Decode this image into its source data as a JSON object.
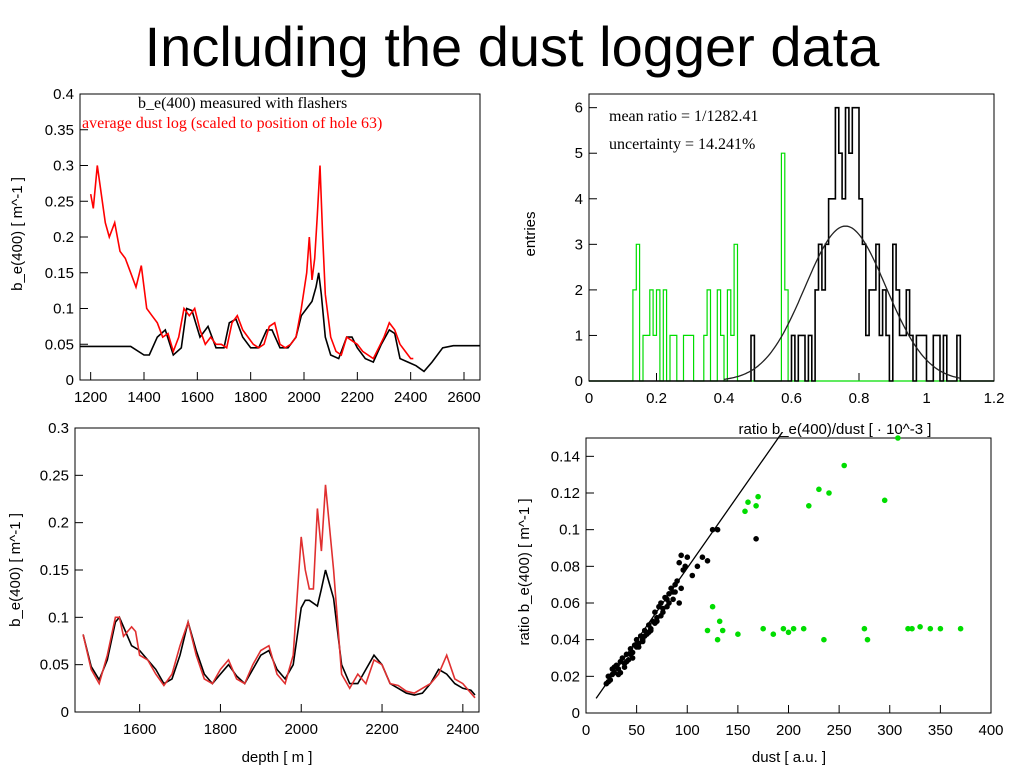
{
  "title": "Including the dust logger data",
  "colors": {
    "black": "#000000",
    "red": "#ff0000",
    "red_lower": "#e03030",
    "green": "#00dd00",
    "gray": "#222222"
  },
  "chart_data": [
    {
      "id": "top_left",
      "type": "line",
      "title": "",
      "xlabel": "",
      "ylabel": "b_e(400) [ m^-1 ]",
      "xlim": [
        1160,
        2660
      ],
      "ylim": [
        0,
        0.4
      ],
      "xticks": [
        1200,
        1400,
        1600,
        1800,
        2000,
        2200,
        2400,
        2600
      ],
      "yticks": [
        0,
        0.05,
        0.1,
        0.15,
        0.2,
        0.25,
        0.3,
        0.35,
        0.4
      ],
      "legend": [
        "b_e(400) measured with flashers",
        "average dust log (scaled to position of hole 63)"
      ],
      "legend_placement": "top-left",
      "series": [
        {
          "name": "b_e(400) measured with flashers",
          "color": "#000000",
          "x": [
            1160,
            1240,
            1300,
            1350,
            1400,
            1420,
            1450,
            1480,
            1510,
            1540,
            1560,
            1580,
            1610,
            1640,
            1670,
            1700,
            1720,
            1745,
            1770,
            1800,
            1830,
            1860,
            1880,
            1910,
            1940,
            1970,
            1990,
            2010,
            2030,
            2045,
            2055,
            2065,
            2080,
            2100,
            2130,
            2160,
            2180,
            2200,
            2230,
            2260,
            2290,
            2320,
            2340,
            2360,
            2390,
            2420,
            2450,
            2480,
            2520,
            2560,
            2600,
            2660
          ],
          "y": [
            0.047,
            0.047,
            0.047,
            0.047,
            0.035,
            0.035,
            0.06,
            0.07,
            0.035,
            0.045,
            0.1,
            0.097,
            0.06,
            0.075,
            0.045,
            0.045,
            0.08,
            0.085,
            0.06,
            0.045,
            0.045,
            0.07,
            0.07,
            0.045,
            0.045,
            0.06,
            0.09,
            0.1,
            0.11,
            0.13,
            0.15,
            0.12,
            0.06,
            0.035,
            0.03,
            0.06,
            0.06,
            0.045,
            0.03,
            0.025,
            0.05,
            0.07,
            0.065,
            0.03,
            0.025,
            0.02,
            0.012,
            0.025,
            0.045,
            0.048,
            0.048,
            0.048
          ]
        },
        {
          "name": "average dust log (scaled to position of hole 63)",
          "color": "#ff0000",
          "x": [
            1200,
            1210,
            1225,
            1240,
            1255,
            1270,
            1290,
            1310,
            1330,
            1350,
            1370,
            1390,
            1410,
            1430,
            1450,
            1470,
            1490,
            1510,
            1530,
            1550,
            1570,
            1590,
            1610,
            1630,
            1650,
            1670,
            1690,
            1710,
            1730,
            1750,
            1770,
            1790,
            1810,
            1830,
            1850,
            1870,
            1890,
            1910,
            1930,
            1950,
            1970,
            1990,
            2010,
            2020,
            2030,
            2040,
            2050,
            2060,
            2070,
            2080,
            2100,
            2120,
            2140,
            2160,
            2180,
            2200,
            2220,
            2240,
            2260,
            2280,
            2300,
            2320,
            2340,
            2360,
            2380,
            2400,
            2410
          ],
          "y": [
            0.26,
            0.24,
            0.3,
            0.26,
            0.22,
            0.2,
            0.22,
            0.18,
            0.17,
            0.15,
            0.13,
            0.16,
            0.1,
            0.09,
            0.08,
            0.06,
            0.065,
            0.04,
            0.06,
            0.1,
            0.09,
            0.1,
            0.07,
            0.05,
            0.06,
            0.05,
            0.05,
            0.045,
            0.08,
            0.09,
            0.07,
            0.06,
            0.05,
            0.045,
            0.05,
            0.075,
            0.08,
            0.05,
            0.045,
            0.05,
            0.06,
            0.1,
            0.15,
            0.2,
            0.14,
            0.17,
            0.23,
            0.3,
            0.2,
            0.12,
            0.06,
            0.04,
            0.035,
            0.06,
            0.055,
            0.05,
            0.04,
            0.035,
            0.03,
            0.045,
            0.06,
            0.08,
            0.07,
            0.05,
            0.04,
            0.03,
            0.03
          ]
        }
      ]
    },
    {
      "id": "top_right",
      "type": "histogram",
      "title": "",
      "xlabel": "ratio b_e(400)/dust [ · 10^-3 ]",
      "ylabel": "entries",
      "xlim": [
        0,
        1.2
      ],
      "ylim": [
        0,
        6.3
      ],
      "xticks": [
        0,
        0.2,
        0.4,
        0.6,
        0.8,
        1,
        1.2
      ],
      "yticks": [
        0,
        1,
        2,
        3,
        4,
        5,
        6
      ],
      "annotations": [
        "mean ratio = 1/1282.41",
        "uncertainty = 14.241%"
      ],
      "bin_width": 0.01,
      "series": [
        {
          "name": "green",
          "color": "#00dd00",
          "bins_start": 0.12,
          "counts": [
            0,
            2,
            3,
            0,
            1,
            1,
            2,
            1,
            2,
            0,
            2,
            0,
            1,
            1,
            0,
            0,
            1,
            1,
            1,
            0,
            0,
            0,
            1,
            2,
            0,
            0,
            2,
            1,
            0,
            2,
            1,
            3,
            0,
            0,
            0,
            0,
            0,
            0,
            0,
            0,
            0,
            0,
            0,
            0,
            0,
            5,
            2,
            0,
            0
          ]
        },
        {
          "name": "black",
          "color": "#000000",
          "bins_start": 0.39,
          "counts": [
            0,
            0,
            0,
            0,
            0,
            0,
            0,
            0,
            0,
            1,
            0,
            0,
            0,
            0,
            0,
            0,
            0,
            0,
            0,
            0,
            0,
            1,
            0,
            1,
            1,
            0,
            1,
            0,
            2,
            3,
            2,
            3,
            4,
            4,
            6,
            5,
            4,
            6,
            5,
            6,
            6,
            4,
            3,
            1,
            2,
            2,
            3,
            1,
            2,
            1,
            0,
            3,
            2,
            1,
            1,
            2,
            1,
            0,
            1,
            1,
            1,
            0,
            0,
            1,
            1,
            0,
            1,
            0,
            0,
            0,
            1,
            0
          ]
        },
        {
          "name": "fit",
          "color": "#222222",
          "type": "gaussian",
          "amplitude": 3.4,
          "mean": 0.76,
          "sigma": 0.12,
          "x_range": [
            0.4,
            1.1
          ]
        }
      ]
    },
    {
      "id": "bottom_left",
      "type": "line",
      "title": "",
      "xlabel": "depth [ m ]",
      "ylabel": "b_e(400) [ m^-1 ]",
      "xlim": [
        1440,
        2440
      ],
      "ylim": [
        0,
        0.3
      ],
      "xticks": [
        1600,
        1800,
        2000,
        2200,
        2400
      ],
      "yticks": [
        0,
        0.05,
        0.1,
        0.15,
        0.2,
        0.25,
        0.3
      ],
      "series": [
        {
          "name": "black",
          "color": "#000000",
          "x": [
            1460,
            1480,
            1500,
            1520,
            1540,
            1550,
            1560,
            1580,
            1600,
            1620,
            1640,
            1660,
            1680,
            1700,
            1720,
            1740,
            1760,
            1780,
            1800,
            1820,
            1840,
            1860,
            1880,
            1900,
            1920,
            1940,
            1960,
            1980,
            2000,
            2010,
            2020,
            2040,
            2050,
            2060,
            2080,
            2100,
            2120,
            2140,
            2160,
            2180,
            2200,
            2220,
            2240,
            2260,
            2280,
            2300,
            2320,
            2340,
            2360,
            2380,
            2400,
            2420,
            2430
          ],
          "y": [
            0.082,
            0.048,
            0.034,
            0.055,
            0.095,
            0.1,
            0.09,
            0.07,
            0.065,
            0.055,
            0.045,
            0.03,
            0.035,
            0.06,
            0.095,
            0.065,
            0.04,
            0.03,
            0.04,
            0.05,
            0.038,
            0.03,
            0.045,
            0.06,
            0.065,
            0.045,
            0.035,
            0.05,
            0.11,
            0.118,
            0.118,
            0.112,
            0.13,
            0.15,
            0.12,
            0.05,
            0.03,
            0.03,
            0.045,
            0.06,
            0.05,
            0.03,
            0.025,
            0.02,
            0.018,
            0.02,
            0.03,
            0.045,
            0.04,
            0.03,
            0.025,
            0.023,
            0.018
          ]
        },
        {
          "name": "red",
          "color": "#e03030",
          "x": [
            1460,
            1480,
            1500,
            1520,
            1540,
            1550,
            1560,
            1580,
            1590,
            1600,
            1620,
            1640,
            1660,
            1680,
            1700,
            1720,
            1740,
            1760,
            1780,
            1800,
            1820,
            1840,
            1860,
            1880,
            1900,
            1920,
            1940,
            1960,
            1980,
            2000,
            2010,
            2020,
            2030,
            2040,
            2050,
            2060,
            2080,
            2100,
            2120,
            2140,
            2160,
            2180,
            2200,
            2220,
            2240,
            2260,
            2280,
            2300,
            2320,
            2340,
            2360,
            2380,
            2400,
            2420,
            2430
          ],
          "y": [
            0.082,
            0.045,
            0.03,
            0.06,
            0.1,
            0.1,
            0.08,
            0.09,
            0.085,
            0.06,
            0.055,
            0.04,
            0.028,
            0.04,
            0.07,
            0.095,
            0.06,
            0.035,
            0.03,
            0.045,
            0.055,
            0.035,
            0.03,
            0.05,
            0.065,
            0.07,
            0.04,
            0.03,
            0.06,
            0.185,
            0.15,
            0.13,
            0.13,
            0.215,
            0.17,
            0.24,
            0.15,
            0.04,
            0.025,
            0.04,
            0.03,
            0.055,
            0.05,
            0.03,
            0.028,
            0.022,
            0.02,
            0.025,
            0.03,
            0.04,
            0.06,
            0.035,
            0.03,
            0.02,
            0.015
          ]
        }
      ]
    },
    {
      "id": "bottom_right",
      "type": "scatter",
      "title": "",
      "xlabel": "dust [ a.u. ]",
      "ylabel": "ratio b_e(400) [ m^-1 ]",
      "xlim": [
        0,
        400
      ],
      "ylim": [
        0,
        0.15
      ],
      "xticks": [
        0,
        50,
        100,
        150,
        200,
        250,
        300,
        350,
        400
      ],
      "yticks": [
        0,
        0.02,
        0.04,
        0.06,
        0.08,
        0.1,
        0.12,
        0.14
      ],
      "fit_line": {
        "x": [
          10,
          200
        ],
        "y": [
          0.008,
          0.158
        ],
        "color": "#000000"
      },
      "series": [
        {
          "name": "black",
          "color": "#000000",
          "x": [
            20,
            22,
            24,
            26,
            28,
            30,
            32,
            34,
            36,
            38,
            40,
            42,
            44,
            46,
            48,
            50,
            52,
            54,
            56,
            58,
            60,
            62,
            64,
            66,
            68,
            70,
            72,
            74,
            76,
            78,
            80,
            82,
            84,
            86,
            88,
            90,
            92,
            94,
            96,
            98,
            100,
            105,
            110,
            115,
            120,
            125,
            130,
            168,
            22,
            28,
            34,
            40,
            46,
            52,
            58,
            64,
            70,
            76,
            82,
            88,
            94,
            26,
            32,
            38,
            44,
            50,
            56,
            62,
            68,
            74,
            80,
            86,
            92
          ],
          "y": [
            0.016,
            0.02,
            0.018,
            0.024,
            0.022,
            0.026,
            0.021,
            0.028,
            0.03,
            0.025,
            0.032,
            0.029,
            0.035,
            0.03,
            0.037,
            0.04,
            0.036,
            0.042,
            0.04,
            0.045,
            0.043,
            0.048,
            0.045,
            0.05,
            0.055,
            0.052,
            0.058,
            0.06,
            0.057,
            0.063,
            0.062,
            0.065,
            0.068,
            0.066,
            0.07,
            0.072,
            0.082,
            0.086,
            0.078,
            0.08,
            0.085,
            0.075,
            0.08,
            0.085,
            0.083,
            0.1,
            0.1,
            0.095,
            0.017,
            0.025,
            0.022,
            0.028,
            0.033,
            0.038,
            0.042,
            0.046,
            0.05,
            0.055,
            0.06,
            0.066,
            0.068,
            0.021,
            0.024,
            0.027,
            0.032,
            0.036,
            0.039,
            0.044,
            0.049,
            0.053,
            0.058,
            0.062,
            0.06
          ]
        },
        {
          "name": "green",
          "color": "#00dd00",
          "x": [
            120,
            125,
            130,
            132,
            135,
            150,
            157,
            160,
            168,
            170,
            175,
            185,
            195,
            200,
            205,
            215,
            220,
            230,
            235,
            240,
            255,
            275,
            278,
            295,
            308,
            318,
            322,
            330,
            340,
            350,
            370
          ],
          "y": [
            0.045,
            0.058,
            0.04,
            0.05,
            0.045,
            0.043,
            0.11,
            0.115,
            0.113,
            0.118,
            0.046,
            0.043,
            0.046,
            0.044,
            0.046,
            0.046,
            0.113,
            0.122,
            0.04,
            0.12,
            0.135,
            0.046,
            0.04,
            0.116,
            0.15,
            0.046,
            0.046,
            0.047,
            0.046,
            0.046,
            0.046
          ]
        }
      ]
    }
  ]
}
